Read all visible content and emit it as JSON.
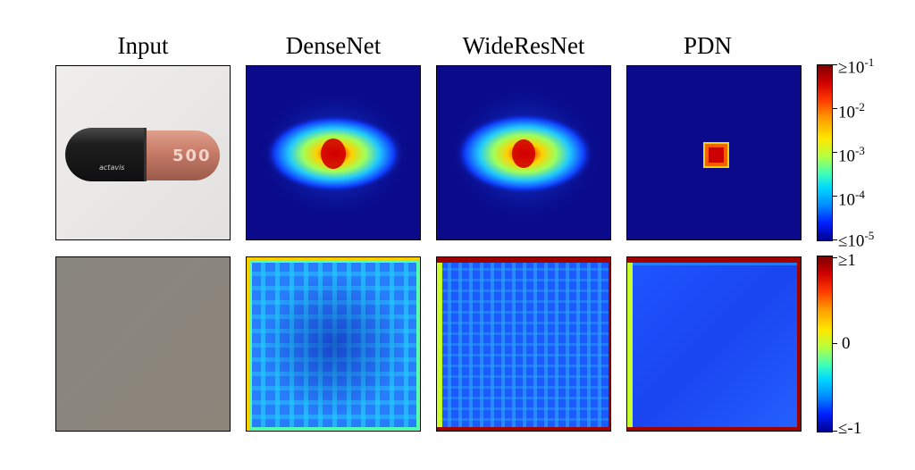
{
  "columns": [
    "Input",
    "DenseNet",
    "WideResNet",
    "PDN"
  ],
  "capsule_text": {
    "number": "500",
    "brand": "actavis"
  },
  "colorbar_top": {
    "labels": [
      "≥10",
      "10",
      "10",
      "10",
      "≤10"
    ],
    "exponents": [
      "-1",
      "-2",
      "-3",
      "-4",
      "-5"
    ]
  },
  "colorbar_bottom": {
    "labels": [
      "≥1",
      "0",
      "≤-1"
    ]
  },
  "colors": {
    "field_dark_blue": "#0a0a8a",
    "capsule_black": "#1b1b1b",
    "capsule_pink": "#c97e6a",
    "input_gray": "#8a857d"
  }
}
